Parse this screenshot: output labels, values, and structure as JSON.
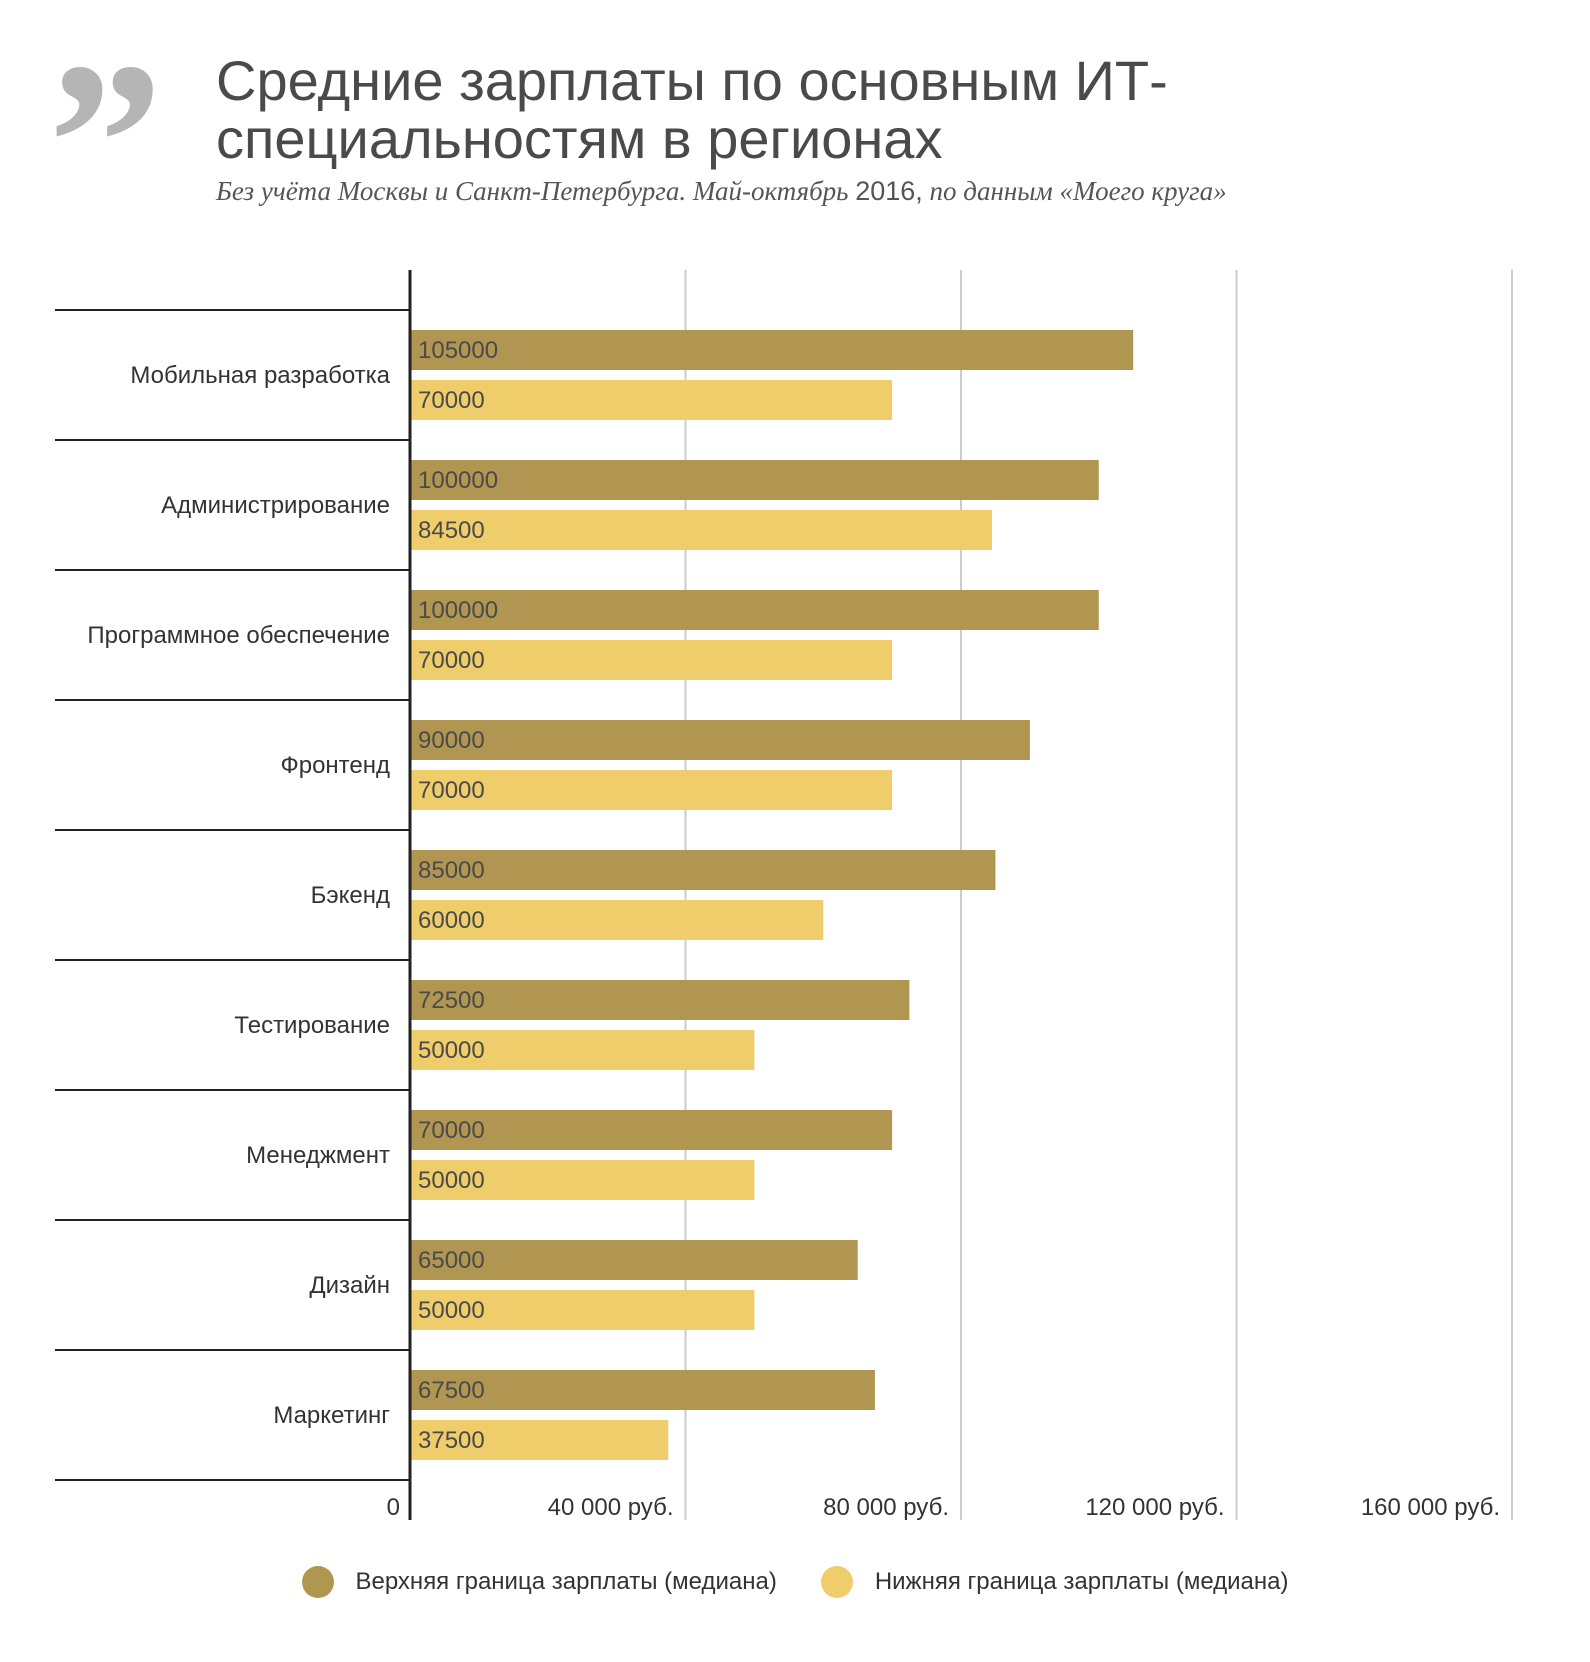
{
  "title": "Средние зарплаты по основным ИТ-специальностям в регионах",
  "subtitle": {
    "text_before": "Без учёта Москвы и Санкт-Петербурга. Май-октябрь ",
    "year": "2016,",
    "text_after": " по данным «Моего круга»"
  },
  "quote_mark": "”",
  "colors": {
    "upper": "#b09650",
    "lower": "#efcd6b",
    "grid": "#cccccc",
    "axis": "#222222"
  },
  "chart_data": {
    "type": "bar",
    "orientation": "horizontal",
    "title": "Средние зарплаты по основным ИТ-специальностям в регионах",
    "categories": [
      "Мобильная разработка",
      "Администрирование",
      "Программное обеспечение",
      "Фронтенд",
      "Бэкенд",
      "Тестирование",
      "Менеджмент",
      "Дизайн",
      "Маркетинг"
    ],
    "series": [
      {
        "name": "Верхняя граница зарплаты (медиана)",
        "color": "#b09650",
        "values": [
          105000,
          100000,
          100000,
          90000,
          85000,
          72500,
          70000,
          65000,
          67500
        ]
      },
      {
        "name": "Нижняя граница зарплаты (медиана)",
        "color": "#efcd6b",
        "values": [
          70000,
          84500,
          70000,
          70000,
          60000,
          50000,
          50000,
          50000,
          37500
        ]
      }
    ],
    "xlim": [
      0,
      160000
    ],
    "xticks": [
      0,
      40000,
      80000,
      120000,
      160000
    ],
    "xtick_labels": [
      "0",
      "40 000 руб.",
      "80 000 руб.",
      "120 000 руб.",
      "160 000 руб."
    ],
    "grid": true,
    "legend_position": "bottom-center"
  }
}
